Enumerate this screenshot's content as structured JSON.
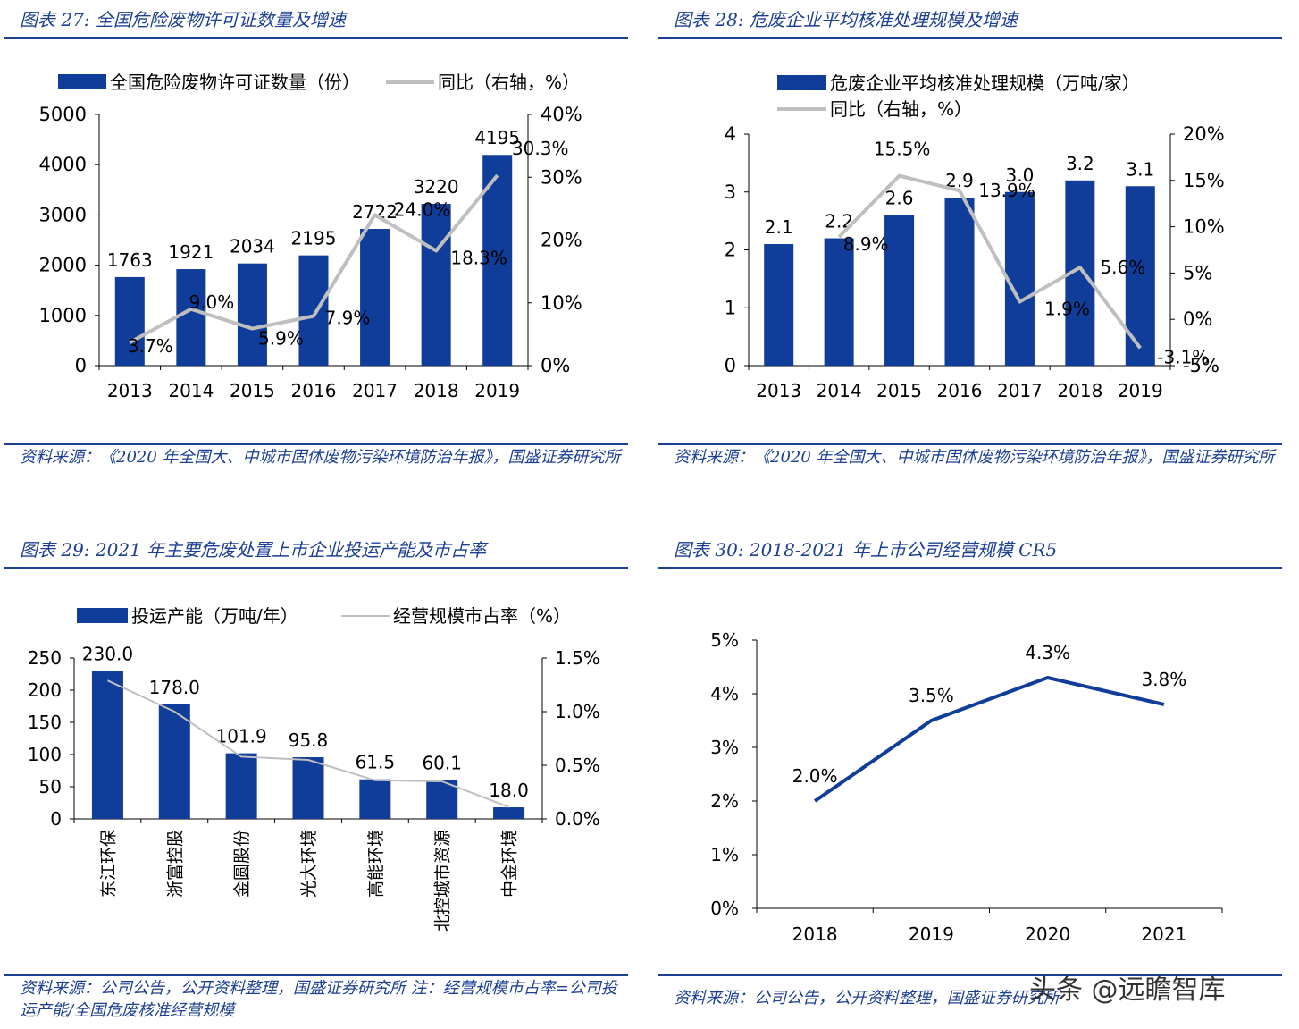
{
  "colors": {
    "bar": "#0f3d99",
    "line_gray": "#bfbfbf",
    "line_blue": "#0f3d99",
    "title": "#1c3f94"
  },
  "chart_data": [
    {
      "id": "fig27",
      "type": "bar",
      "title": "图表 27:  全国危险废物许可证数量及增速",
      "categories": [
        "2013",
        "2014",
        "2015",
        "2016",
        "2017",
        "2018",
        "2019"
      ],
      "series": [
        {
          "name": "全国危险废物许可证数量（份）",
          "axis": "left",
          "kind": "bar",
          "values": [
            1763,
            1921,
            2034,
            2195,
            2722,
            3220,
            4195
          ],
          "labels": [
            "1763",
            "1921",
            "2034",
            "2195",
            "2722",
            "3220",
            "4195"
          ]
        },
        {
          "name": "同比（右轴，%）",
          "axis": "right",
          "kind": "line",
          "values": [
            3.7,
            9.0,
            5.9,
            7.9,
            24.0,
            18.3,
            30.3
          ],
          "labels": [
            "3.7%",
            "9.0%",
            "5.9%",
            "7.9%",
            "24.0%",
            "18.3%",
            "30.3%"
          ]
        }
      ],
      "ylim": [
        0,
        5000
      ],
      "yticks": [
        "0",
        "1000",
        "2000",
        "3000",
        "4000",
        "5000"
      ],
      "ylim_right": [
        0,
        40
      ],
      "yticks_right": [
        "0%",
        "10%",
        "20%",
        "30%",
        "40%"
      ],
      "legend_position": "top",
      "source": "资料来源：《2020 年全国大、中城市固体废物污染环境防治年报》，国盛证券研究所"
    },
    {
      "id": "fig28",
      "type": "bar",
      "title": "图表 28:  危废企业平均核准处理规模及增速",
      "categories": [
        "2013",
        "2014",
        "2015",
        "2016",
        "2017",
        "2018",
        "2019"
      ],
      "series": [
        {
          "name": "危废企业平均核准处理规模（万吨/家）",
          "axis": "left",
          "kind": "bar",
          "values": [
            2.1,
            2.2,
            2.6,
            2.9,
            3.0,
            3.2,
            3.1
          ],
          "labels": [
            "2.1",
            "2.2",
            "2.6",
            "2.9",
            "3.0",
            "3.2",
            "3.1"
          ]
        },
        {
          "name": "同比（右轴，%）",
          "axis": "right",
          "kind": "line",
          "values": [
            null,
            8.9,
            15.5,
            13.9,
            1.9,
            5.6,
            -3.1
          ],
          "labels": [
            null,
            "8.9%",
            "15.5%",
            "13.9%",
            "1.9%",
            "5.6%",
            "-3.1%"
          ]
        }
      ],
      "ylim": [
        0,
        4
      ],
      "yticks": [
        "0",
        "1",
        "2",
        "3",
        "4"
      ],
      "ylim_right": [
        -5,
        20
      ],
      "yticks_right": [
        "-5%",
        "0%",
        "5%",
        "10%",
        "15%",
        "20%"
      ],
      "legend_position": "top",
      "source": "资料来源：《2020 年全国大、中城市固体废物污染环境防治年报》，国盛证券研究所"
    },
    {
      "id": "fig29",
      "type": "bar",
      "title": "图表 29:  2021 年主要危废处置上市企业投运产能及市占率",
      "categories": [
        "东江环保",
        "浙富控股",
        "金圆股份",
        "光大环境",
        "高能环境",
        "北控城市资源",
        "中金环境"
      ],
      "series": [
        {
          "name": "投运产能（万吨/年）",
          "axis": "left",
          "kind": "bar",
          "values": [
            230.0,
            178.0,
            101.9,
            95.8,
            61.5,
            60.1,
            18.0
          ],
          "labels": [
            "230.0",
            "178.0",
            "101.9",
            "95.8",
            "61.5",
            "60.1",
            "18.0"
          ]
        },
        {
          "name": "经营规模市占率（%）",
          "axis": "right",
          "kind": "line",
          "values": [
            1.29,
            1.0,
            0.58,
            0.55,
            0.36,
            0.35,
            0.11
          ]
        }
      ],
      "ylim": [
        0,
        250
      ],
      "yticks": [
        "0",
        "50",
        "100",
        "150",
        "200",
        "250"
      ],
      "ylim_right": [
        0,
        1.5
      ],
      "yticks_right": [
        "0.0%",
        "0.5%",
        "1.0%",
        "1.5%"
      ],
      "legend_position": "top",
      "source": "资料来源：公司公告，公开资料整理，国盛证券研究所 注：经营规模市占率=公司投运产能/全国危废核准经营规模"
    },
    {
      "id": "fig30",
      "type": "line",
      "title": "图表 30:  2018-2021 年上市公司经营规模 CR5",
      "categories": [
        "2018",
        "2019",
        "2020",
        "2021"
      ],
      "series": [
        {
          "name": "CR5",
          "kind": "line",
          "values": [
            2.0,
            3.5,
            4.3,
            3.8
          ],
          "labels": [
            "2.0%",
            "3.5%",
            "4.3%",
            "3.8%"
          ]
        }
      ],
      "ylim": [
        0,
        5
      ],
      "yticks": [
        "0%",
        "1%",
        "2%",
        "3%",
        "4%",
        "5%"
      ],
      "legend_position": "none",
      "source": "资料来源：公司公告，公开资料整理，国盛证券研究所"
    }
  ],
  "watermark": "头条 @远瞻智库"
}
